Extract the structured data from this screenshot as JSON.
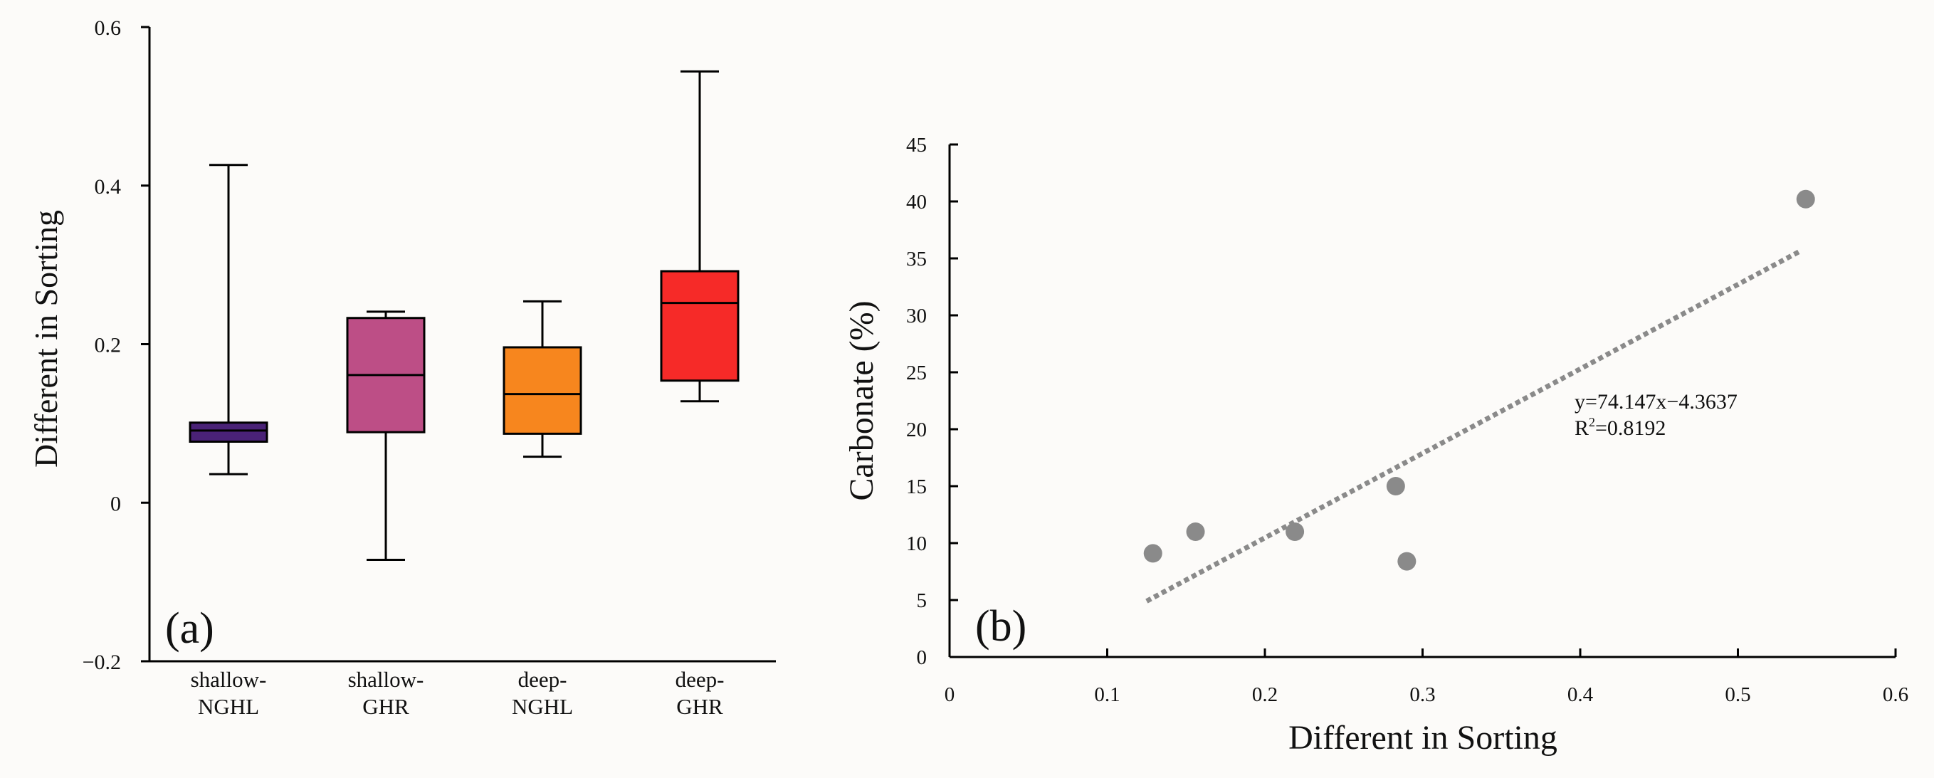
{
  "chart_data": [
    {
      "type": "box",
      "panel_label": "(a)",
      "ylabel": "Different in Sorting",
      "ylim": [
        -0.2,
        0.6
      ],
      "yticks": [
        {
          "value": -0.2,
          "label": "−0.2"
        },
        {
          "value": 0,
          "label": "0"
        },
        {
          "value": 0.2,
          "label": "0.2"
        },
        {
          "value": 0.4,
          "label": "0.4"
        },
        {
          "value": 0.6,
          "label": "0.6"
        }
      ],
      "boxes": [
        {
          "label_line1": "shallow-",
          "label_line2": "NGHL",
          "min": 0.036,
          "q1": 0.077,
          "median": 0.091,
          "q3": 0.101,
          "max": 0.426,
          "color": "#4a2277"
        },
        {
          "label_line1": "shallow-",
          "label_line2": "GHR",
          "min": -0.072,
          "q1": 0.089,
          "median": 0.161,
          "q3": 0.233,
          "max": 0.241,
          "color": "#bd4e86"
        },
        {
          "label_line1": "deep-",
          "label_line2": "NGHL",
          "min": 0.058,
          "q1": 0.087,
          "median": 0.137,
          "q3": 0.196,
          "max": 0.254,
          "color": "#f7861e"
        },
        {
          "label_line1": "deep-",
          "label_line2": "GHR",
          "min": 0.128,
          "q1": 0.154,
          "median": 0.252,
          "q3": 0.292,
          "max": 0.544,
          "color": "#f62a28"
        }
      ]
    },
    {
      "type": "scatter",
      "panel_label": "(b)",
      "xlabel": "Different in Sorting",
      "ylabel": "Carbonate (%)",
      "xlim": [
        0,
        0.6
      ],
      "ylim": [
        0,
        45
      ],
      "xticks": [
        {
          "value": 0,
          "label": "0"
        },
        {
          "value": 0.1,
          "label": "0.1"
        },
        {
          "value": 0.2,
          "label": "0.2"
        },
        {
          "value": 0.3,
          "label": "0.3"
        },
        {
          "value": 0.4,
          "label": "0.4"
        },
        {
          "value": 0.5,
          "label": "0.5"
        },
        {
          "value": 0.6,
          "label": "0.6"
        }
      ],
      "yticks": [
        {
          "value": 0,
          "label": "0"
        },
        {
          "value": 5,
          "label": "5"
        },
        {
          "value": 10,
          "label": "10"
        },
        {
          "value": 15,
          "label": "15"
        },
        {
          "value": 20,
          "label": "20"
        },
        {
          "value": 25,
          "label": "25"
        },
        {
          "value": 30,
          "label": "30"
        },
        {
          "value": 35,
          "label": "35"
        },
        {
          "value": 40,
          "label": "40"
        },
        {
          "value": 45,
          "label": "45"
        }
      ],
      "points": [
        {
          "x": 0.129,
          "y": 9.1
        },
        {
          "x": 0.156,
          "y": 11.0
        },
        {
          "x": 0.219,
          "y": 11.0
        },
        {
          "x": 0.283,
          "y": 15.0
        },
        {
          "x": 0.29,
          "y": 8.4
        },
        {
          "x": 0.543,
          "y": 40.2
        }
      ],
      "point_color": "#8a8a8a",
      "trendline": {
        "slope": 74.147,
        "intercept": -4.3637,
        "x_range": [
          0.125,
          0.54
        ],
        "color": "#8a8a8a",
        "equation_label": "y=74.147x−4.3637",
        "r2_prefix": "R",
        "r2_sup": "2",
        "r2_value": "=0.8192"
      }
    }
  ]
}
